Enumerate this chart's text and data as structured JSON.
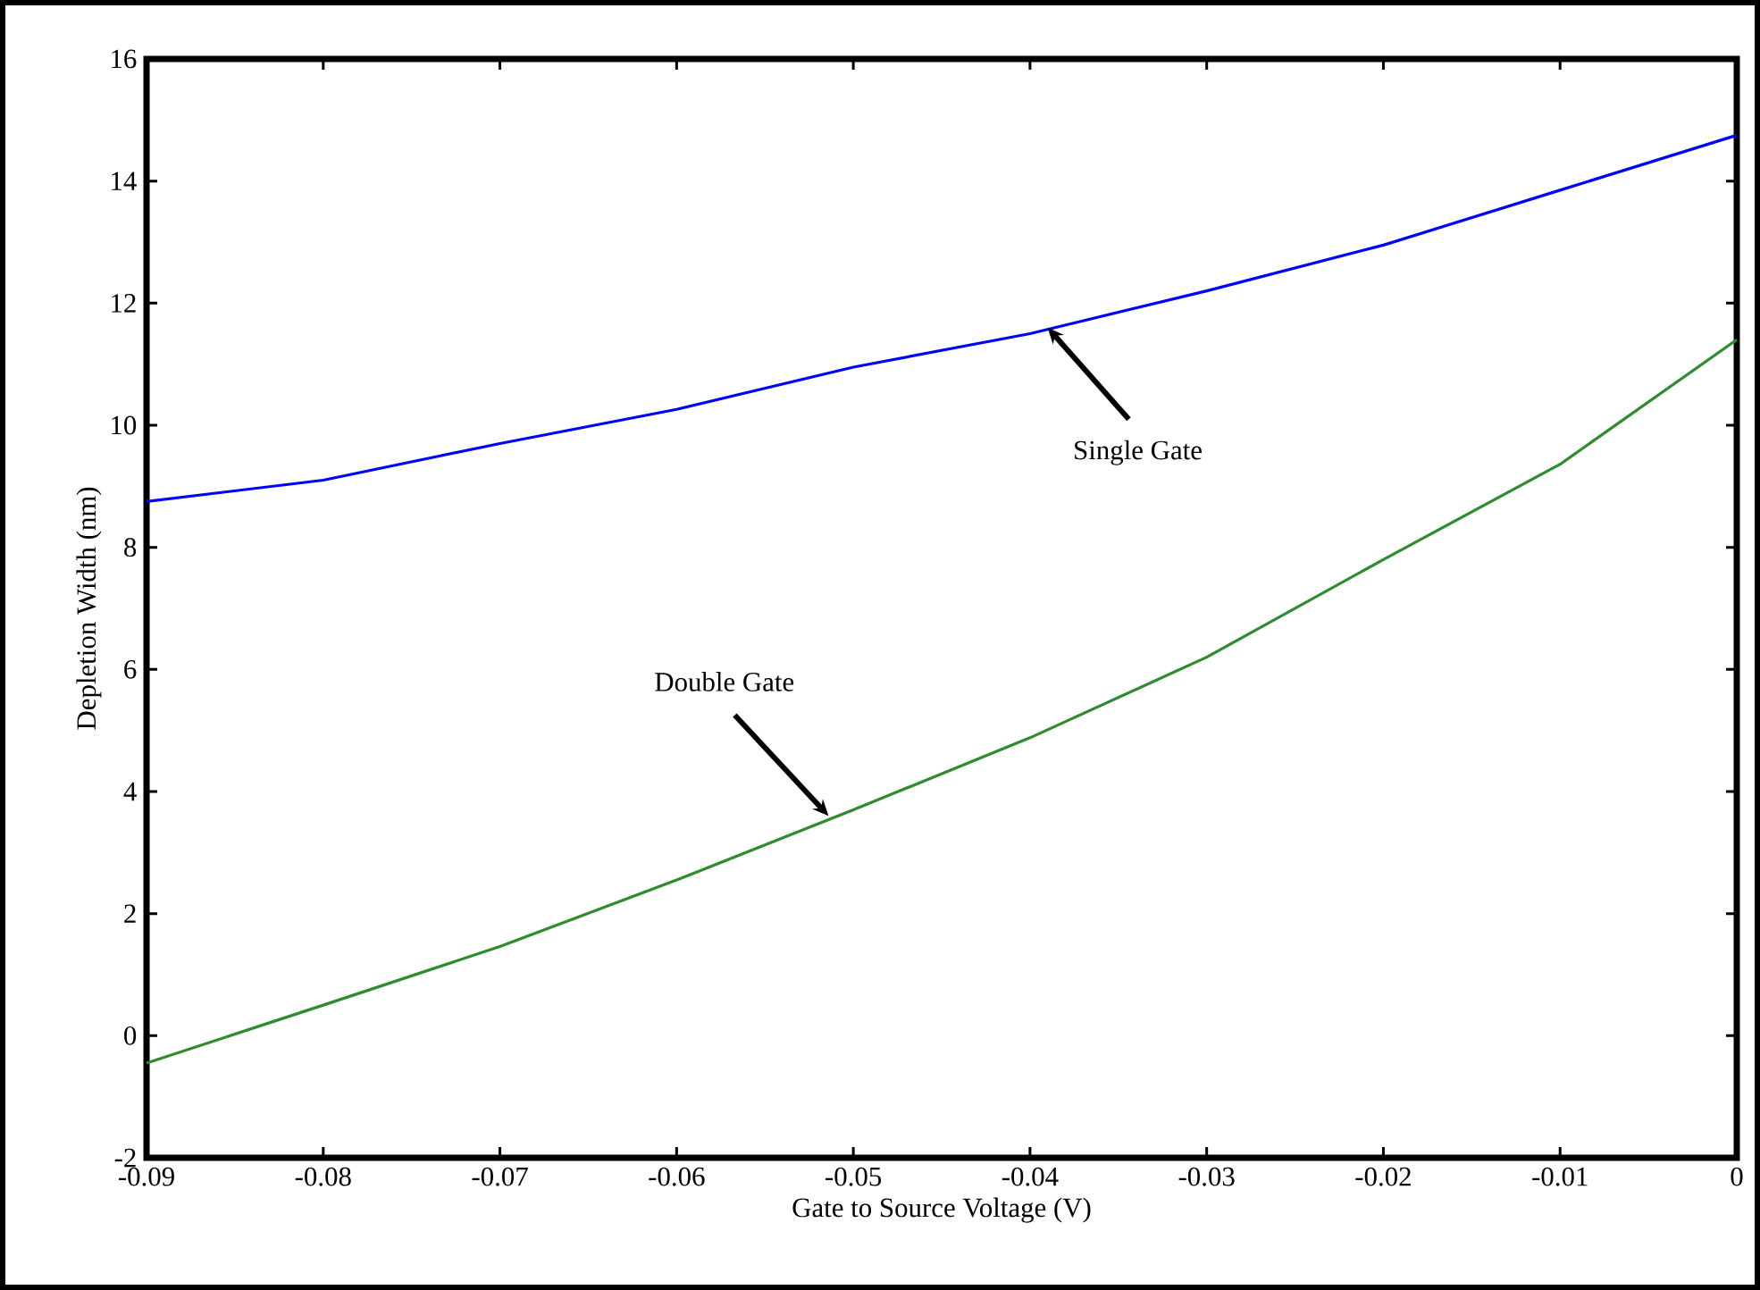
{
  "chart_data": {
    "type": "line",
    "xlabel": "Gate to Source Voltage (V)",
    "ylabel": "Depletion Width (nm)",
    "x": [
      -0.09,
      -0.08,
      -0.07,
      -0.06,
      -0.05,
      -0.04,
      -0.03,
      -0.02,
      -0.01,
      0
    ],
    "series": [
      {
        "color": "#0000ff",
        "values": [
          8.75,
          9.1,
          9.7,
          10.26,
          10.95,
          11.5,
          12.2,
          12.95,
          13.85,
          14.75
        ]
      },
      {
        "color": "#2e8b2e",
        "values": [
          -0.45,
          0.5,
          1.46,
          2.55,
          3.7,
          4.88,
          6.2,
          7.8,
          9.36,
          11.4
        ]
      }
    ],
    "xlim": [
      -0.09,
      0
    ],
    "ylim": [
      -2,
      16
    ],
    "xticks": [
      -0.09,
      -0.08,
      -0.07,
      -0.06,
      -0.05,
      -0.04,
      -0.03,
      -0.02,
      -0.01,
      0
    ],
    "yticks": [
      -2,
      0,
      2,
      4,
      6,
      8,
      10,
      12,
      14,
      16
    ],
    "annotations": [
      {
        "text": "Single Gate",
        "x": -0.039,
        "y": 11.6
      },
      {
        "text": "Double Gate",
        "x": -0.0514,
        "y": 3.6
      }
    ],
    "marker": "none",
    "line_style": "solid"
  }
}
